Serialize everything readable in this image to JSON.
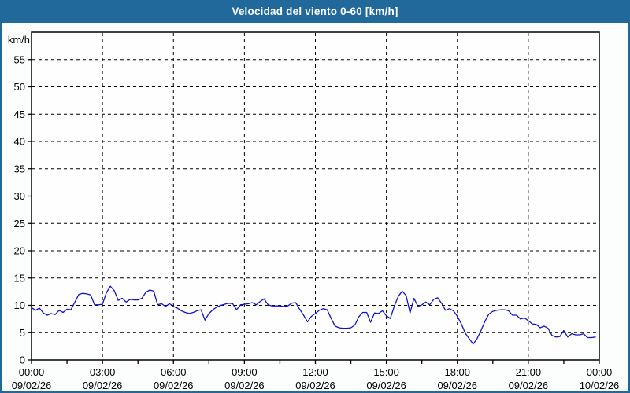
{
  "window": {
    "title": "Velocidad del viento 0-60 [km/h]"
  },
  "colors": {
    "titlebar_bg": "#21689b",
    "titlebar_text": "#ffffff",
    "frame_border": "#21689b",
    "page_bg": "#fcfefd",
    "plot_bg": "#fefefe",
    "axis": "#000000",
    "grid": "#000000",
    "label_text": "#000000",
    "line": "#1111cc"
  },
  "chart_data": {
    "type": "line",
    "title": "Velocidad del viento 0-60 [km/h]",
    "ylabel": "km/h",
    "xlabel": "",
    "ylim": [
      0,
      60
    ],
    "ytick_step": 5,
    "ymax_labeled": 55,
    "grid": "dashed",
    "legend_position": "none",
    "x_range_minutes": [
      0,
      1440
    ],
    "x_major_step_minutes": 180,
    "x_minor_step_minutes": 90,
    "x_major_ticks": [
      {
        "time": "00:00",
        "date": "09/02/26"
      },
      {
        "time": "03:00",
        "date": "09/02/26"
      },
      {
        "time": "06:00",
        "date": "09/02/26"
      },
      {
        "time": "09:00",
        "date": "09/02/26"
      },
      {
        "time": "12:00",
        "date": "09/02/26"
      },
      {
        "time": "15:00",
        "date": "09/02/26"
      },
      {
        "time": "18:00",
        "date": "09/02/26"
      },
      {
        "time": "21:00",
        "date": "09/02/26"
      },
      {
        "time": "00:00",
        "date": "10/02/26"
      }
    ],
    "series": [
      {
        "name": "velocidad del viento",
        "color": "#1111cc",
        "points_t_minutes_v_kmh": [
          [
            0,
            9.6
          ],
          [
            10,
            9.1
          ],
          [
            20,
            9.5
          ],
          [
            30,
            8.6
          ],
          [
            40,
            8.2
          ],
          [
            50,
            8.5
          ],
          [
            60,
            8.3
          ],
          [
            70,
            9.1
          ],
          [
            80,
            8.7
          ],
          [
            90,
            9.3
          ],
          [
            100,
            9.2
          ],
          [
            110,
            10.6
          ],
          [
            120,
            12.0
          ],
          [
            130,
            12.2
          ],
          [
            140,
            12.1
          ],
          [
            150,
            11.9
          ],
          [
            160,
            10.1
          ],
          [
            170,
            10.1
          ],
          [
            180,
            10.2
          ],
          [
            190,
            12.3
          ],
          [
            200,
            13.5
          ],
          [
            210,
            12.7
          ],
          [
            220,
            10.9
          ],
          [
            230,
            11.3
          ],
          [
            240,
            10.6
          ],
          [
            250,
            11.1
          ],
          [
            260,
            11.0
          ],
          [
            270,
            11.0
          ],
          [
            280,
            11.3
          ],
          [
            290,
            12.4
          ],
          [
            300,
            12.8
          ],
          [
            310,
            12.6
          ],
          [
            320,
            10.1
          ],
          [
            330,
            10.3
          ],
          [
            340,
            9.8
          ],
          [
            350,
            10.3
          ],
          [
            360,
            9.8
          ],
          [
            370,
            9.5
          ],
          [
            380,
            9.0
          ],
          [
            390,
            8.7
          ],
          [
            400,
            8.5
          ],
          [
            410,
            8.7
          ],
          [
            420,
            9.0
          ],
          [
            430,
            9.2
          ],
          [
            440,
            7.3
          ],
          [
            450,
            8.5
          ],
          [
            460,
            9.2
          ],
          [
            470,
            9.7
          ],
          [
            480,
            10.0
          ],
          [
            490,
            10.2
          ],
          [
            500,
            10.4
          ],
          [
            510,
            10.3
          ],
          [
            520,
            9.2
          ],
          [
            530,
            10.1
          ],
          [
            540,
            10.2
          ],
          [
            550,
            10.3
          ],
          [
            560,
            10.5
          ],
          [
            570,
            10.1
          ],
          [
            580,
            10.7
          ],
          [
            590,
            11.2
          ],
          [
            600,
            10.1
          ],
          [
            610,
            9.9
          ],
          [
            620,
            9.9
          ],
          [
            630,
            9.9
          ],
          [
            640,
            9.8
          ],
          [
            650,
            9.9
          ],
          [
            660,
            10.4
          ],
          [
            670,
            10.5
          ],
          [
            680,
            9.3
          ],
          [
            690,
            8.2
          ],
          [
            700,
            7.0
          ],
          [
            710,
            8.0
          ],
          [
            720,
            8.5
          ],
          [
            730,
            9.1
          ],
          [
            740,
            9.4
          ],
          [
            750,
            9.2
          ],
          [
            760,
            7.6
          ],
          [
            770,
            6.2
          ],
          [
            780,
            5.9
          ],
          [
            790,
            5.8
          ],
          [
            800,
            5.8
          ],
          [
            810,
            5.9
          ],
          [
            820,
            6.4
          ],
          [
            830,
            7.9
          ],
          [
            840,
            8.7
          ],
          [
            850,
            8.7
          ],
          [
            860,
            6.9
          ],
          [
            870,
            8.6
          ],
          [
            880,
            8.5
          ],
          [
            890,
            9.0
          ],
          [
            900,
            8.1
          ],
          [
            910,
            7.6
          ],
          [
            920,
            9.8
          ],
          [
            930,
            11.6
          ],
          [
            940,
            12.6
          ],
          [
            950,
            11.8
          ],
          [
            960,
            8.6
          ],
          [
            970,
            11.3
          ],
          [
            980,
            9.8
          ],
          [
            990,
            10.1
          ],
          [
            1000,
            10.6
          ],
          [
            1010,
            10.1
          ],
          [
            1020,
            11.1
          ],
          [
            1030,
            11.4
          ],
          [
            1040,
            10.4
          ],
          [
            1050,
            9.1
          ],
          [
            1060,
            9.4
          ],
          [
            1070,
            9.0
          ],
          [
            1080,
            8.0
          ],
          [
            1090,
            6.6
          ],
          [
            1100,
            4.9
          ],
          [
            1110,
            3.9
          ],
          [
            1120,
            2.9
          ],
          [
            1130,
            3.9
          ],
          [
            1140,
            5.4
          ],
          [
            1150,
            7.1
          ],
          [
            1160,
            8.4
          ],
          [
            1170,
            8.9
          ],
          [
            1180,
            9.1
          ],
          [
            1190,
            9.2
          ],
          [
            1200,
            9.2
          ],
          [
            1210,
            9.0
          ],
          [
            1220,
            8.2
          ],
          [
            1230,
            8.2
          ],
          [
            1240,
            7.5
          ],
          [
            1250,
            7.7
          ],
          [
            1260,
            7.2
          ],
          [
            1270,
            6.6
          ],
          [
            1280,
            6.5
          ],
          [
            1290,
            5.9
          ],
          [
            1300,
            6.2
          ],
          [
            1310,
            5.8
          ],
          [
            1320,
            4.5
          ],
          [
            1330,
            4.2
          ],
          [
            1340,
            4.3
          ],
          [
            1350,
            5.4
          ],
          [
            1360,
            4.2
          ],
          [
            1370,
            4.8
          ],
          [
            1380,
            4.6
          ],
          [
            1390,
            4.6
          ],
          [
            1400,
            4.8
          ],
          [
            1410,
            4.1
          ],
          [
            1420,
            4.1
          ],
          [
            1430,
            4.2
          ]
        ]
      }
    ]
  }
}
